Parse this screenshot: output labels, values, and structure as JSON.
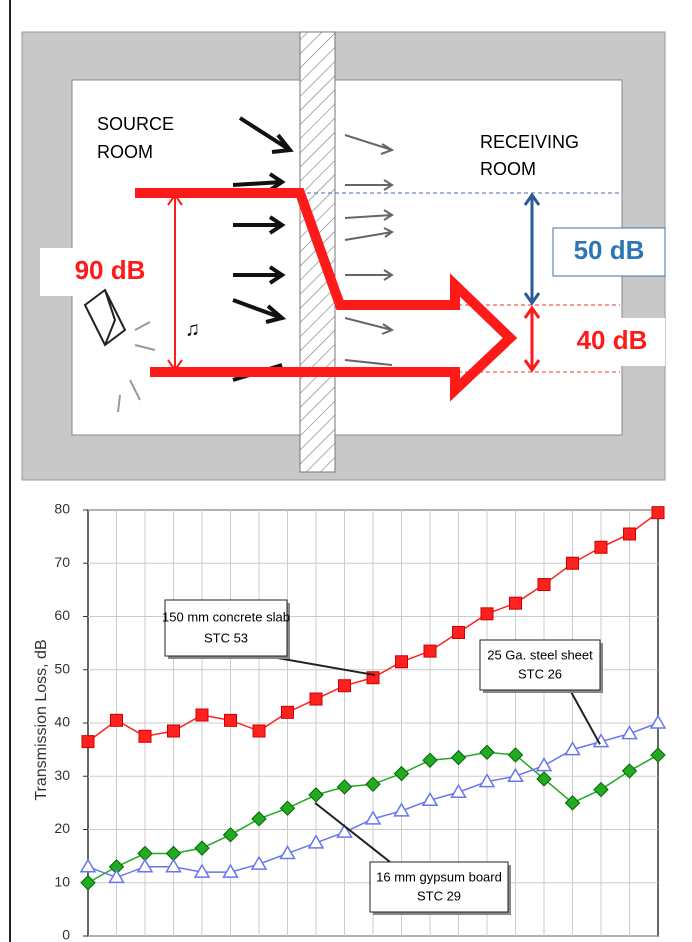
{
  "diagram": {
    "source_room": [
      "SOURCE",
      "ROOM"
    ],
    "receiving_room": [
      "RECEIVING",
      "ROOM"
    ],
    "source_level": "90 dB",
    "loss_level": "50 dB",
    "received_level": "40 dB"
  },
  "chart_data": {
    "type": "line",
    "y_label": "Transmission Loss, dB",
    "categories": [
      null,
      null,
      null,
      null,
      null,
      null,
      null,
      null,
      null,
      null,
      null,
      null,
      null,
      null,
      null,
      null,
      null,
      null,
      null,
      null,
      null
    ],
    "ylim": [
      0,
      80
    ],
    "yticks": [
      0,
      10,
      20,
      30,
      40,
      50,
      60,
      70,
      80
    ],
    "grid": true,
    "series": [
      {
        "name": "150 mm concrete slab",
        "stc": "STC 53",
        "color": "#ff2020",
        "marker": "square",
        "values": [
          36.5,
          40.5,
          37.5,
          38.5,
          41.5,
          40.5,
          38.5,
          42,
          44.5,
          47,
          48.5,
          51.5,
          53.5,
          57,
          60.5,
          62.5,
          66,
          70,
          73,
          75.5,
          79.5
        ]
      },
      {
        "name": "16 mm gypsum board",
        "stc": "STC 29",
        "color": "#22aa22",
        "marker": "diamond",
        "values": [
          10,
          13,
          15.5,
          15.5,
          16.5,
          19,
          22,
          24,
          26.5,
          28,
          28.5,
          30.5,
          33,
          33.5,
          34.5,
          34,
          29.5,
          25,
          27.5,
          31,
          34
        ]
      },
      {
        "name": "25 Ga. steel sheet",
        "stc": "STC 26",
        "color": "#6677ee",
        "marker": "triangle",
        "values": [
          13,
          11,
          13,
          13,
          12,
          12,
          13.5,
          15.5,
          17.5,
          19.5,
          22,
          23.5,
          25.5,
          27,
          29,
          30,
          32,
          35,
          36.5,
          38,
          40
        ]
      }
    ]
  }
}
